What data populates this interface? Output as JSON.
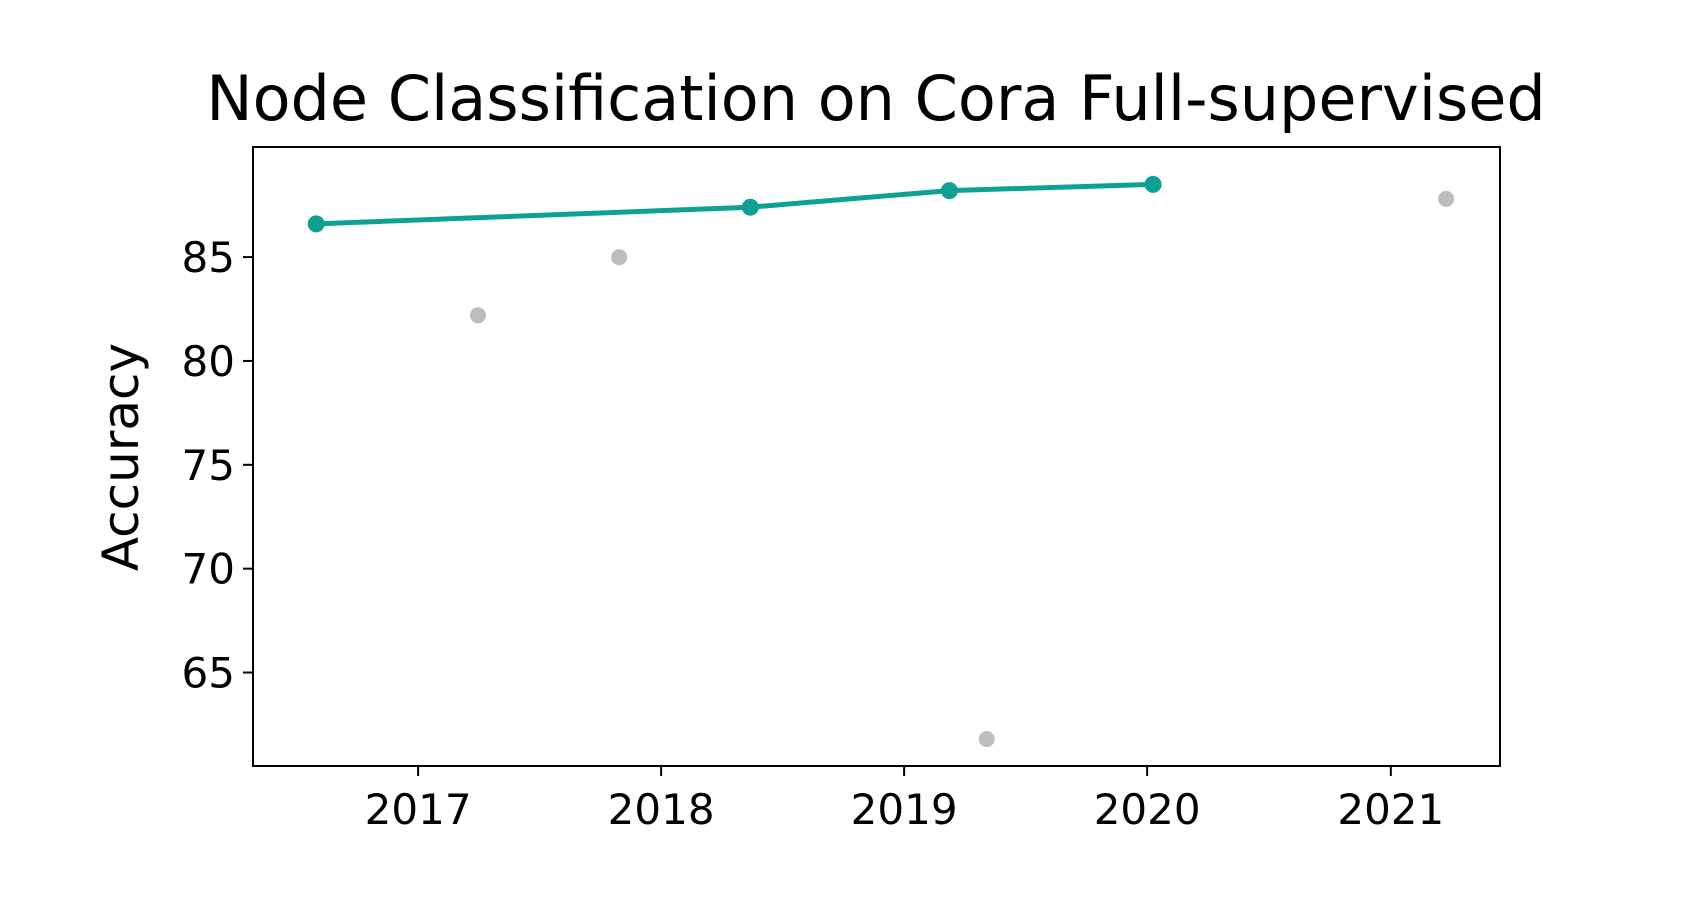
{
  "chart_data": {
    "type": "line",
    "title": "Node Classification on Cora Full-supervised",
    "xlabel": "",
    "ylabel": "Accuracy",
    "x_axis": "date",
    "xlim": [
      "2016-04-28",
      "2021-06-14"
    ],
    "ylim": [
      60.5,
      90.3
    ],
    "xticks": [
      "2017",
      "2018",
      "2019",
      "2020",
      "2021"
    ],
    "xtick_dates": [
      "2017-01-01",
      "2018-01-01",
      "2019-01-01",
      "2020-01-01",
      "2021-01-01"
    ],
    "yticks": [
      65,
      70,
      75,
      80,
      85
    ],
    "grid": false,
    "legend": "none",
    "series": [
      {
        "role": "state-of-the-art",
        "style": "line-with-markers",
        "color": "#0ea193",
        "points": [
          {
            "x": "2016-08-01",
            "y": 86.6
          },
          {
            "x": "2018-05-15",
            "y": 87.4
          },
          {
            "x": "2019-03-10",
            "y": 88.2
          },
          {
            "x": "2020-01-10",
            "y": 88.5
          }
        ]
      },
      {
        "role": "other",
        "style": "markers-only",
        "color": "#bdbdbd",
        "points": [
          {
            "x": "2017-04-01",
            "y": 82.2
          },
          {
            "x": "2017-10-30",
            "y": 85.0
          },
          {
            "x": "2019-05-05",
            "y": 61.8
          },
          {
            "x": "2021-03-25",
            "y": 87.8
          }
        ]
      }
    ]
  }
}
